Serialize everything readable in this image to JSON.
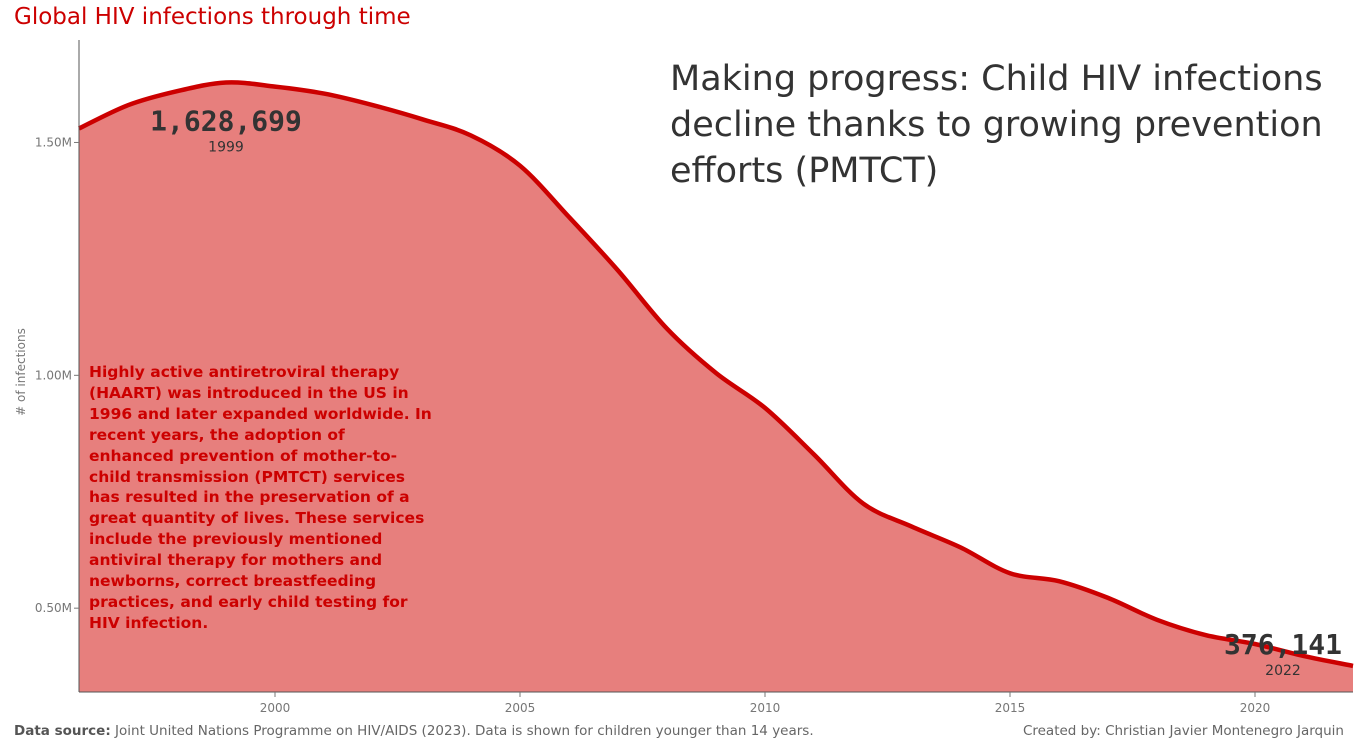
{
  "page": {
    "title": "Global HIV infections through time",
    "headline": "Making progress: Child HIV infections decline thanks to growing prevention efforts (PMTCT)",
    "annotation": "Highly active antiretroviral therapy (HAART) was introduced in the US in 1996 and later expanded worldwide. In recent years, the adoption of enhanced prevention of mother-to-child transmission (PMTCT) services has resulted in the preservation of a great quantity of lives. These services include the previously mentioned antiviral therapy for mothers and newborns, correct breastfeeding practices, and early child testing for HIV infection.",
    "footer": {
      "source_label": "Data source:",
      "source_text": "Joint United Nations Programme on HIV/AIDS (2023). Data is shown for children younger than 14 years.",
      "credit": "Created by: Christian Javier Montenegro Jarquin"
    }
  },
  "colors": {
    "line": "#cc0000",
    "area": "#e77f7d",
    "title": "#cc0000",
    "text": "#333333",
    "axis": "#777777"
  },
  "chart_data": {
    "type": "area",
    "title": "Global HIV infections through time",
    "xlabel": "",
    "ylabel": "# of infections",
    "x": [
      1996,
      1997,
      1998,
      1999,
      2000,
      2001,
      2002,
      2003,
      2004,
      2005,
      2006,
      2007,
      2008,
      2009,
      2010,
      2011,
      2012,
      2013,
      2014,
      2015,
      2016,
      2017,
      2018,
      2019,
      2020,
      2021,
      2022
    ],
    "series": [
      {
        "name": "",
        "values": [
          1530000,
          1580000,
          1610000,
          1628699,
          1620000,
          1605000,
          1580000,
          1550000,
          1515000,
          1450000,
          1340000,
          1225000,
          1100000,
          1005000,
          930000,
          830000,
          725000,
          675000,
          630000,
          575000,
          558000,
          522000,
          475000,
          442000,
          423000,
          397000,
          376141
        ]
      }
    ],
    "xlim": [
      1996,
      2022
    ],
    "ylim": [
      320000,
      1720000
    ],
    "x_ticks": [
      2000,
      2005,
      2010,
      2015,
      2020
    ],
    "x_tick_labels": [
      "2000",
      "2005",
      "2010",
      "2015",
      "2020"
    ],
    "y_ticks": [
      500000,
      1000000,
      1500000
    ],
    "y_tick_labels": [
      "0.50M",
      "1.00M",
      "1.50M"
    ],
    "grid": false,
    "legend": "none",
    "callouts": [
      {
        "value_label": "1,628,699",
        "year_label": "1999",
        "x": 1999,
        "y": 1628699
      },
      {
        "value_label": "376,141",
        "year_label": "2022",
        "x": 2022,
        "y": 376141
      }
    ]
  }
}
